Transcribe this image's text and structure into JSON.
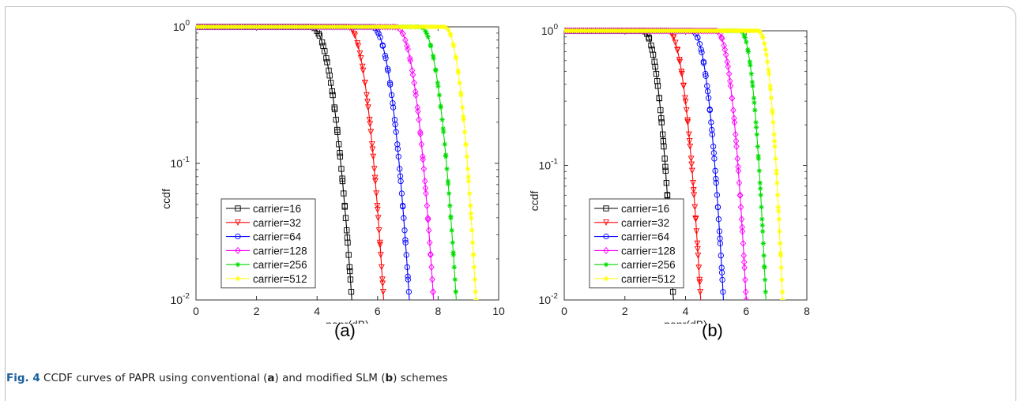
{
  "chart_data": [
    {
      "panel": "(a)",
      "type": "line",
      "xlabel": "papr(dB)",
      "ylabel": "ccdf",
      "xlim": [
        0,
        10
      ],
      "xticks": [
        "0",
        "2",
        "4",
        "6",
        "8",
        "10"
      ],
      "ylim": [
        0.01,
        1
      ],
      "yscale": "log",
      "yticks": [
        "10^-2",
        "10^-1",
        "10^0"
      ],
      "legend_position": "lower-left",
      "grid": false,
      "series": [
        {
          "name": "carrier=16",
          "color": "#000000",
          "marker": "square",
          "knee": 3.8,
          "end": 5.15
        },
        {
          "name": "carrier=32",
          "color": "#ff0000",
          "marker": "triangle-down",
          "knee": 5.0,
          "end": 6.2
        },
        {
          "name": "carrier=64",
          "color": "#0000ff",
          "marker": "circle",
          "knee": 5.8,
          "end": 7.05
        },
        {
          "name": "carrier=128",
          "color": "#ff00ff",
          "marker": "diamond",
          "knee": 6.6,
          "end": 7.85
        },
        {
          "name": "carrier=256",
          "color": "#00dd00",
          "marker": "asterisk",
          "knee": 7.4,
          "end": 8.6
        },
        {
          "name": "carrier=512",
          "color": "#ffff00",
          "marker": "asterisk",
          "knee": 8.2,
          "end": 9.25
        }
      ]
    },
    {
      "panel": "(b)",
      "type": "line",
      "xlabel": "papr(dB)",
      "ylabel": "ccdf",
      "xlim": [
        0,
        8
      ],
      "xticks": [
        "0",
        "2",
        "4",
        "6",
        "8"
      ],
      "ylim": [
        0.01,
        1
      ],
      "yscale": "log",
      "yticks": [
        "10^-2",
        "10^-1",
        "10^0"
      ],
      "legend_position": "lower-left",
      "grid": false,
      "series": [
        {
          "name": "carrier=16",
          "color": "#000000",
          "marker": "square",
          "knee": 2.6,
          "end": 3.6
        },
        {
          "name": "carrier=32",
          "color": "#ff0000",
          "marker": "triangle-down",
          "knee": 3.4,
          "end": 4.5
        },
        {
          "name": "carrier=64",
          "color": "#0000ff",
          "marker": "circle",
          "knee": 4.2,
          "end": 5.25
        },
        {
          "name": "carrier=128",
          "color": "#ff00ff",
          "marker": "diamond",
          "knee": 5.0,
          "end": 6.0
        },
        {
          "name": "carrier=256",
          "color": "#00dd00",
          "marker": "asterisk",
          "knee": 5.8,
          "end": 6.65
        },
        {
          "name": "carrier=512",
          "color": "#ffff00",
          "marker": "asterisk",
          "knee": 6.4,
          "end": 7.2
        }
      ]
    }
  ],
  "panels": {
    "a_label": "(a)",
    "b_label": "(b)"
  },
  "caption": {
    "fig_label": "Fig. 4",
    "part1": " CCDF curves of PAPR using conventional (",
    "a": "a",
    "part2": ") and modified SLM (",
    "b": "b",
    "part3": ") schemes"
  }
}
